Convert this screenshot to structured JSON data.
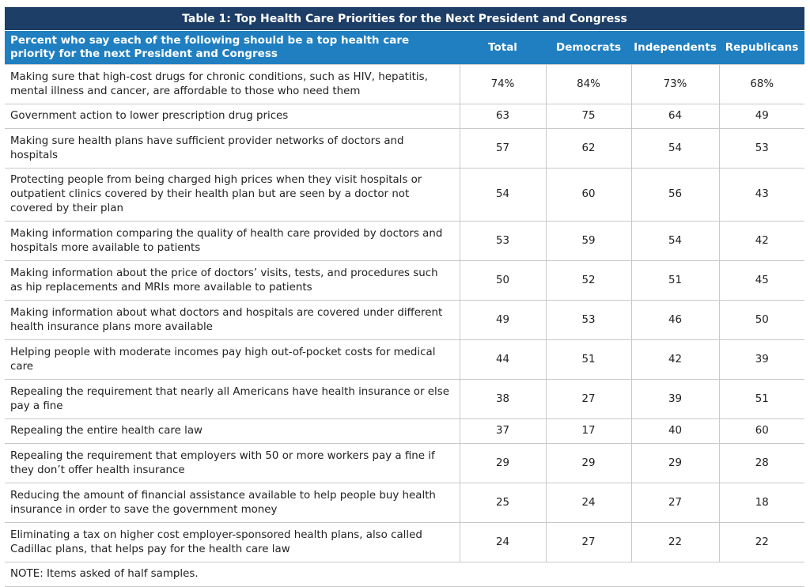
{
  "table": {
    "title": "Table 1: Top Health Care Priorities for the Next President and Congress",
    "header": {
      "item": "Percent who say each of the following should be a top health care priority for the next President and Congress",
      "total": "Total",
      "democrats": "Democrats",
      "independents": "Independents",
      "republicans": "Republicans"
    },
    "rows": [
      {
        "item": "Making sure that high-cost drugs for chronic conditions, such as HIV, hepatitis, mental illness and cancer, are affordable to those who need them",
        "total": "74%",
        "democrats": "84%",
        "independents": "73%",
        "republicans": "68%"
      },
      {
        "item": "Government action to lower prescription drug prices",
        "total": "63",
        "democrats": "75",
        "independents": "64",
        "republicans": "49"
      },
      {
        "item": "Making sure health plans have sufficient provider networks of doctors and hospitals",
        "total": "57",
        "democrats": "62",
        "independents": "54",
        "republicans": "53"
      },
      {
        "item": "Protecting people from being charged high prices when they visit hospitals or outpatient clinics covered by their health plan but are seen by a doctor not covered by their plan",
        "total": "54",
        "democrats": "60",
        "independents": "56",
        "republicans": "43"
      },
      {
        "item": "Making information comparing the quality of health care provided by doctors and hospitals more available to patients",
        "total": "53",
        "democrats": "59",
        "independents": "54",
        "republicans": "42"
      },
      {
        "item": "Making information about the price of doctors’ visits, tests, and procedures such as hip replacements and MRIs more available to patients",
        "total": "50",
        "democrats": "52",
        "independents": "51",
        "republicans": "45"
      },
      {
        "item": "Making information about what doctors and hospitals are covered under different health insurance plans more available",
        "total": "49",
        "democrats": "53",
        "independents": "46",
        "republicans": "50"
      },
      {
        "item": "Helping people with moderate incomes pay high out-of-pocket costs for medical care",
        "total": "44",
        "democrats": "51",
        "independents": "42",
        "republicans": "39"
      },
      {
        "item": "Repealing the requirement that nearly all Americans have health insurance or else pay a fine",
        "total": "38",
        "democrats": "27",
        "independents": "39",
        "republicans": "51"
      },
      {
        "item": "Repealing the entire health care law",
        "total": "37",
        "democrats": "17",
        "independents": "40",
        "republicans": "60"
      },
      {
        "item": "Repealing the requirement that employers with 50 or more workers pay a fine if they don’t offer health insurance",
        "total": "29",
        "democrats": "29",
        "independents": "29",
        "republicans": "28"
      },
      {
        "item": "Reducing the amount of financial assistance available to help people buy health insurance in order to save the government money",
        "total": "25",
        "democrats": "24",
        "independents": "27",
        "republicans": "18"
      },
      {
        "item": "Eliminating a tax on higher cost employer-sponsored health plans, also called Cadillac plans, that helps pay for the health care law",
        "total": "24",
        "democrats": "27",
        "independents": "22",
        "republicans": "22"
      }
    ],
    "note": "NOTE: Items asked of half samples."
  },
  "colors": {
    "title_bg": "#1d3e66",
    "header_bg": "#1f7fc1",
    "grid": "#c9c9c9"
  }
}
